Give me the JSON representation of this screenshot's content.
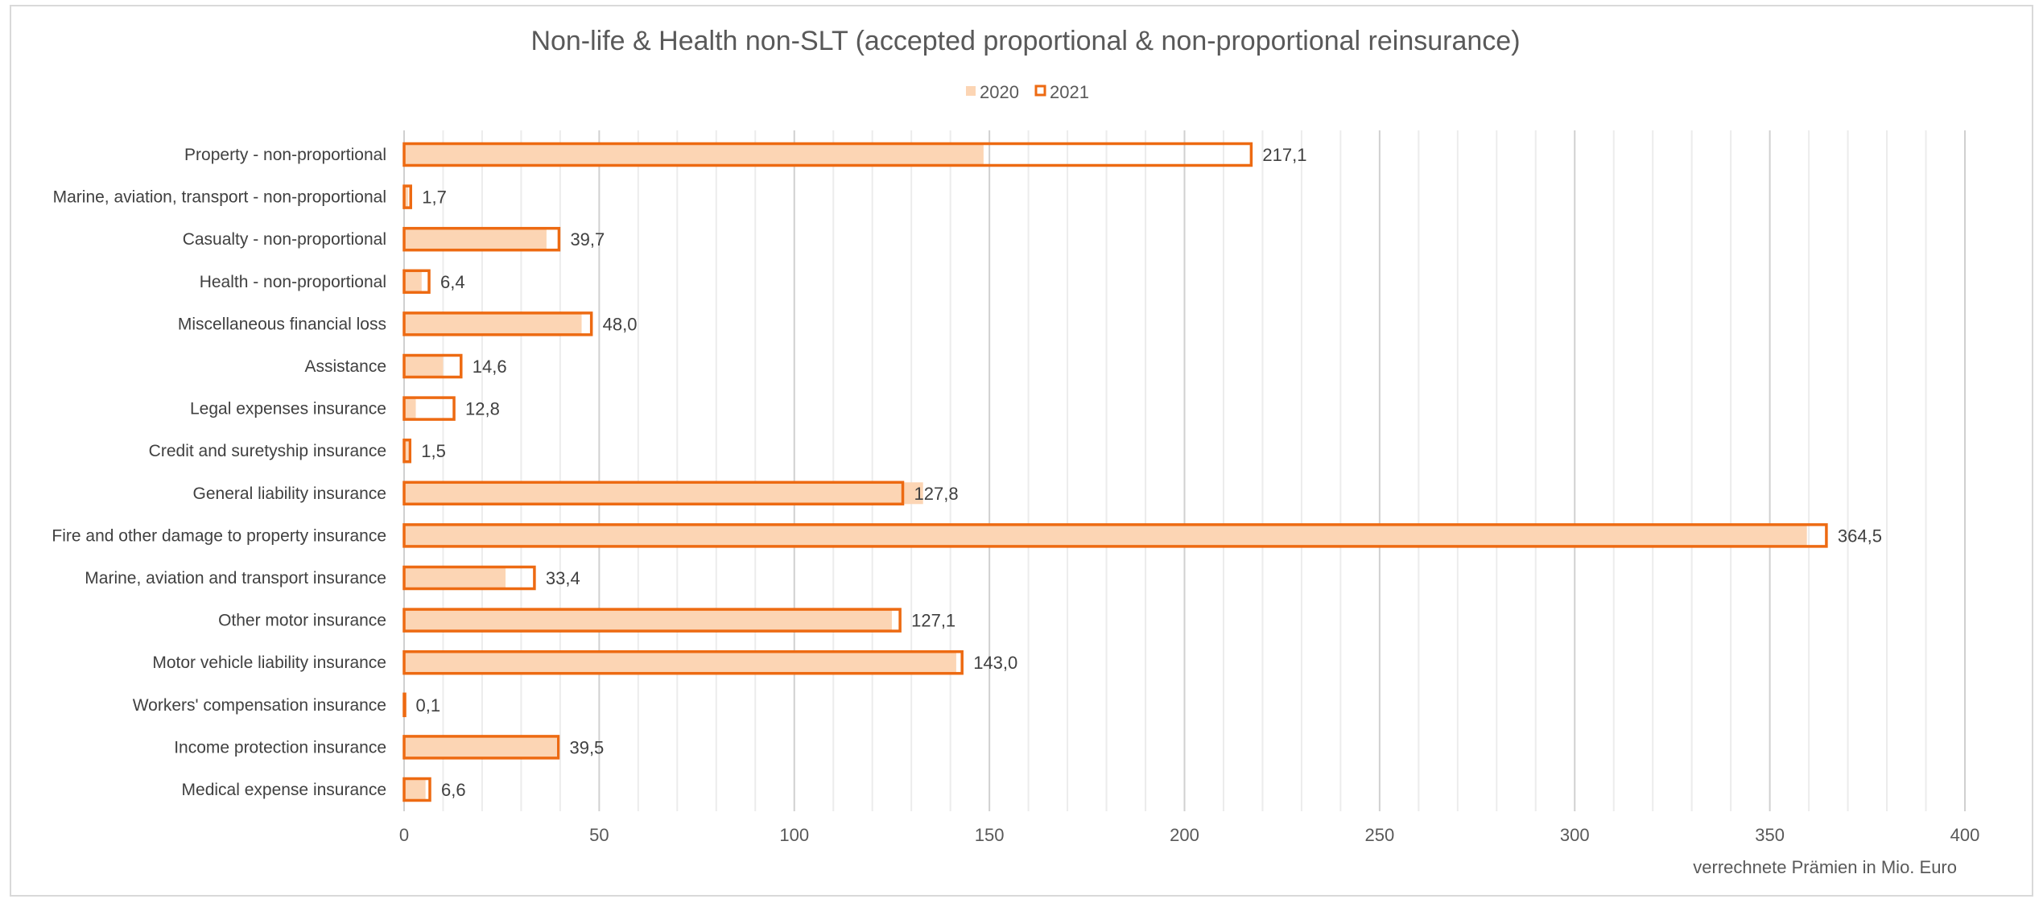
{
  "chart_data": {
    "type": "bar",
    "orientation": "horizontal",
    "title": "Non-life & Health non-SLT (accepted proportional & non-proportional reinsurance)",
    "xlabel": "verrechnete  Prämien in Mio. Euro",
    "ylabel": "",
    "xlim": [
      0,
      400
    ],
    "major_ticks": [
      0,
      50,
      100,
      150,
      200,
      250,
      300,
      350,
      400
    ],
    "minor_tick_step": 10,
    "grid": true,
    "legend_position": "top",
    "categories": [
      "Property - non-proportional",
      "Marine, aviation, transport - non-proportional",
      "Casualty - non-proportional",
      "Health - non-proportional",
      "Miscellaneous financial loss",
      "Assistance",
      "Legal expenses insurance",
      "Credit and suretyship insurance",
      "General liability insurance",
      "Fire and other damage to property insurance",
      "Marine, aviation and transport insurance",
      "Other motor insurance",
      "Motor vehicle liability insurance",
      "Workers' compensation insurance",
      "Income protection insurance",
      "Medical expense insurance"
    ],
    "series": [
      {
        "name": "2020",
        "style": "filled",
        "color": "#fcd5b4",
        "values": [
          148.5,
          1.0,
          36.5,
          4.5,
          45.5,
          10.0,
          3.0,
          1.0,
          133.0,
          359.5,
          26.0,
          125.0,
          141.5,
          0.1,
          39.0,
          5.5
        ]
      },
      {
        "name": "2021",
        "style": "outline",
        "color": "#ed6a12",
        "values": [
          217.1,
          1.7,
          39.7,
          6.4,
          48.0,
          14.6,
          12.8,
          1.5,
          127.8,
          364.5,
          33.4,
          127.1,
          143.0,
          0.1,
          39.5,
          6.6
        ],
        "data_labels": [
          "217,1",
          "1,7",
          "39,7",
          "6,4",
          "48,0",
          "14,6",
          "12,8",
          "1,5",
          "127,8",
          "364,5",
          "33,4",
          "127,1",
          "143,0",
          "0,1",
          "39,5",
          "6,6"
        ]
      }
    ],
    "tick_labels": [
      "0",
      "50",
      "100",
      "150",
      "200",
      "250",
      "300",
      "350",
      "400"
    ]
  }
}
